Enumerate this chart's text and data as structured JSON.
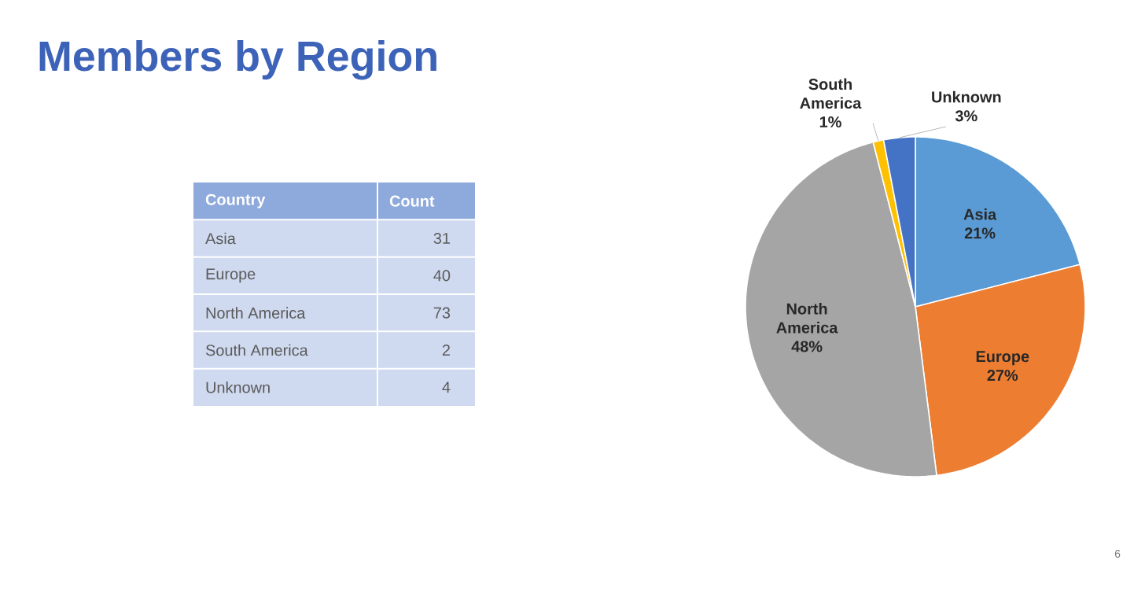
{
  "chart_data": [
    {
      "type": "other",
      "title": "Members by Region",
      "xlabel": "Country",
      "ylabel": "Count",
      "categories": [
        "Asia",
        "Europe",
        "North America",
        "South America",
        "Unknown"
      ],
      "value_labels": [
        "31",
        "40",
        "73",
        "2",
        "4"
      ],
      "annotations": [
        "6"
      ]
    },
    {
      "type": "pie",
      "categories": [
        "Asia",
        "Europe",
        "North America",
        "South America",
        "Unknown"
      ],
      "values": [
        21,
        27,
        48,
        1,
        3
      ],
      "colors": [
        "#5b9bd5",
        "#ed7d31",
        "#a5a5a5",
        "#ffc000",
        "#4472c4"
      ],
      "value_labels": [
        "21%",
        "27%",
        "48%",
        "1%",
        "3%"
      ]
    }
  ]
}
